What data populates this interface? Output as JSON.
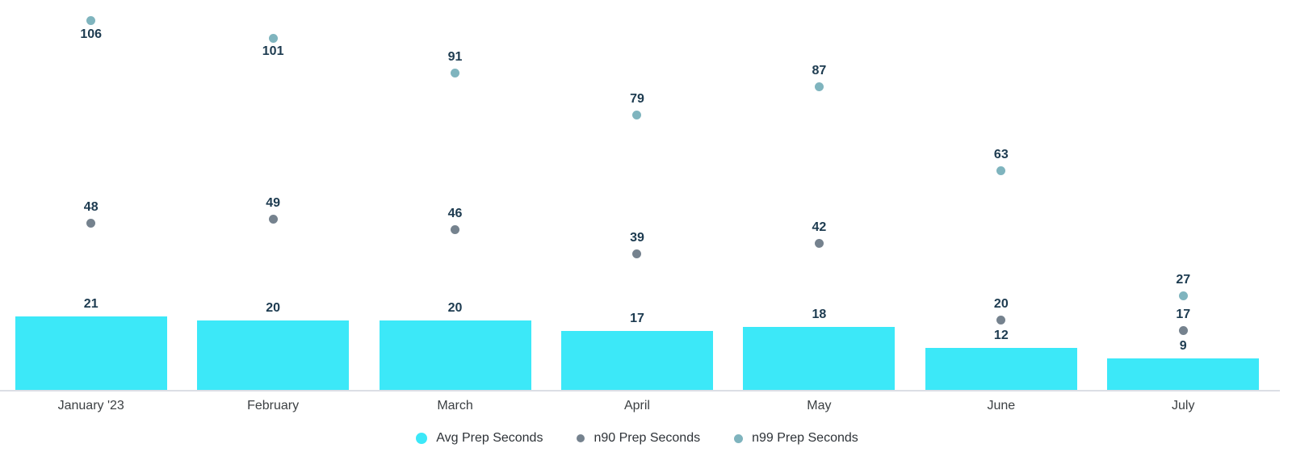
{
  "chart_data": {
    "type": "bar",
    "title": "",
    "xlabel": "",
    "ylabel": "",
    "categories": [
      "January '23",
      "February",
      "March",
      "April",
      "May",
      "June",
      "July"
    ],
    "series": [
      {
        "name": "Avg Prep Seconds",
        "render_as": "bars",
        "color": "#3CE8F8",
        "values": [
          21,
          20,
          20,
          17,
          18,
          12,
          9
        ],
        "label_positions": [
          "above",
          "above",
          "above",
          "above",
          "above",
          "above",
          "above"
        ]
      },
      {
        "name": "n90 Prep Seconds",
        "render_as": "points",
        "color": "#75828E",
        "values": [
          48,
          49,
          46,
          39,
          42,
          20,
          17
        ],
        "label_positions": [
          "above",
          "above",
          "above",
          "above",
          "above",
          "above",
          "above"
        ]
      },
      {
        "name": "n99 Prep Seconds",
        "render_as": "points",
        "color": "#7FB4BE",
        "values": [
          106,
          101,
          91,
          79,
          87,
          63,
          27
        ],
        "label_positions": [
          "below",
          "below",
          "above",
          "above",
          "above",
          "above",
          "above"
        ]
      }
    ],
    "ylim": [
      0,
      112
    ],
    "grid": false,
    "y_axis_labels_shown": false,
    "legend_position": "bottom",
    "annotations": "every bar and point carries its numeric value label"
  },
  "colors": {
    "background": "#FFFFFF",
    "axis_line": "#DCDEE5",
    "value_label": "#1D3B50",
    "category_label": "#3C4043",
    "legend_label": "#2E3338"
  }
}
